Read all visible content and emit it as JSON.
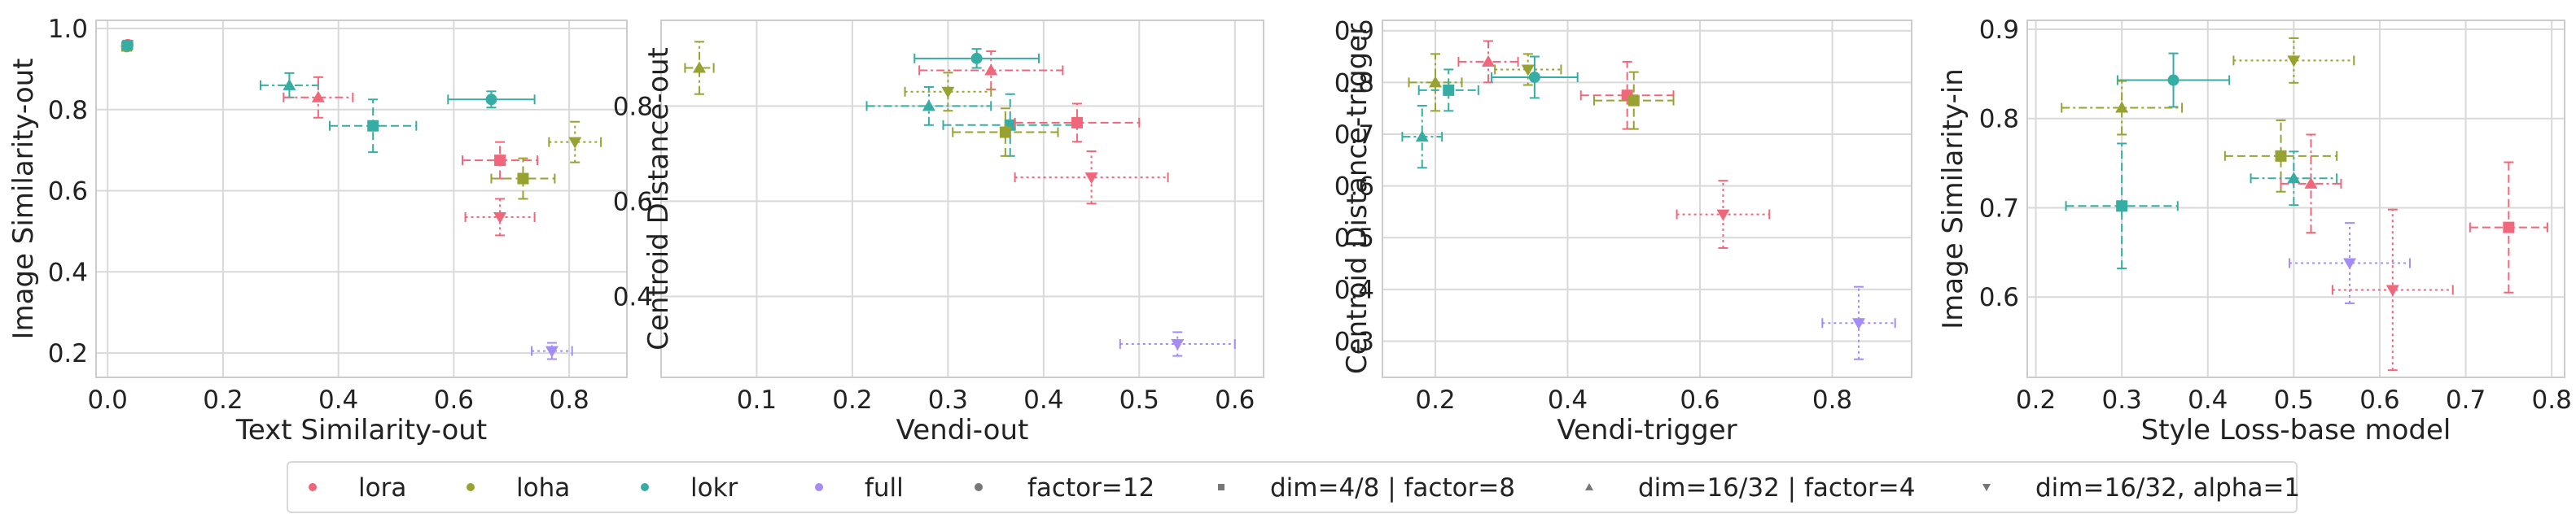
{
  "colors": {
    "lora": "#f0667a",
    "loha": "#97a231",
    "lokr": "#36ada4",
    "full": "#a48cf4",
    "grid": "#d9d9d9",
    "frame": "#cccccc"
  },
  "legend": {
    "adapters": [
      {
        "label": "lora",
        "color": "#f0667a"
      },
      {
        "label": "loha",
        "color": "#97a231"
      },
      {
        "label": "lokr",
        "color": "#36ada4"
      },
      {
        "label": "full",
        "color": "#a48cf4"
      }
    ],
    "configs": [
      {
        "label": "factor=12",
        "marker": "circle"
      },
      {
        "label": "dim=4/8 | factor=8",
        "marker": "square"
      },
      {
        "label": "dim=16/32 | factor=4",
        "marker": "triangle-up"
      },
      {
        "label": "dim=16/32, alpha=1",
        "marker": "triangle-down"
      }
    ]
  },
  "chart_data": [
    {
      "type": "scatter",
      "xlabel": "Text Similarity-out",
      "ylabel": "Image Similarity-out",
      "xlim": [
        -0.02,
        0.9
      ],
      "ylim": [
        0.14,
        1.02
      ],
      "xticks": [
        "0.0",
        "0.2",
        "0.4",
        "0.6",
        "0.8"
      ],
      "yticks": [
        "0.2",
        "0.4",
        "0.6",
        "0.8",
        "1.0"
      ],
      "xtick_values": [
        0,
        0.2,
        0.4,
        0.6,
        0.8
      ],
      "ytick_values": [
        0.2,
        0.4,
        0.6,
        0.8,
        1.0
      ],
      "points": [
        {
          "adapter": "lora",
          "marker": "circle",
          "x": 0.035,
          "y": 0.96,
          "xerr": 0.008,
          "yerr": 0.01
        },
        {
          "adapter": "loha",
          "marker": "circle",
          "x": 0.033,
          "y": 0.955,
          "xerr": 0.008,
          "yerr": 0.01
        },
        {
          "adapter": "lokr",
          "marker": "circle",
          "x": 0.034,
          "y": 0.958,
          "xerr": 0.008,
          "yerr": 0.01
        },
        {
          "adapter": "lokr",
          "marker": "triangle-up",
          "x": 0.315,
          "y": 0.86,
          "xerr": 0.05,
          "yerr": 0.03
        },
        {
          "adapter": "lora",
          "marker": "triangle-up",
          "x": 0.365,
          "y": 0.83,
          "xerr": 0.06,
          "yerr": 0.05
        },
        {
          "adapter": "lokr",
          "marker": "square",
          "x": 0.46,
          "y": 0.76,
          "xerr": 0.075,
          "yerr": 0.065
        },
        {
          "adapter": "lokr",
          "marker": "circle",
          "x": 0.665,
          "y": 0.825,
          "xerr": 0.075,
          "yerr": 0.02
        },
        {
          "adapter": "lora",
          "marker": "square",
          "x": 0.68,
          "y": 0.675,
          "xerr": 0.065,
          "yerr": 0.045
        },
        {
          "adapter": "loha",
          "marker": "square",
          "x": 0.72,
          "y": 0.63,
          "xerr": 0.055,
          "yerr": 0.05
        },
        {
          "adapter": "loha",
          "marker": "triangle-down",
          "x": 0.81,
          "y": 0.72,
          "xerr": 0.045,
          "yerr": 0.05
        },
        {
          "adapter": "lora",
          "marker": "triangle-down",
          "x": 0.68,
          "y": 0.535,
          "xerr": 0.06,
          "yerr": 0.045
        },
        {
          "adapter": "full",
          "marker": "triangle-down",
          "x": 0.77,
          "y": 0.205,
          "xerr": 0.035,
          "yerr": 0.02
        }
      ]
    },
    {
      "type": "scatter",
      "xlabel": "Vendi-out",
      "ylabel": "Centroid Distance-out",
      "xlim": [
        0.0,
        0.63
      ],
      "ylim": [
        0.23,
        0.98
      ],
      "xticks": [
        "0.1",
        "0.2",
        "0.3",
        "0.4",
        "0.5",
        "0.6"
      ],
      "yticks": [
        "0.4",
        "0.6",
        "0.8"
      ],
      "xtick_values": [
        0.1,
        0.2,
        0.3,
        0.4,
        0.5,
        0.6
      ],
      "ytick_values": [
        0.4,
        0.6,
        0.8
      ],
      "points": [
        {
          "adapter": "loha",
          "marker": "triangle-up",
          "x": 0.04,
          "y": 0.88,
          "xerr": 0.015,
          "yerr": 0.055
        },
        {
          "adapter": "lokr",
          "marker": "circle",
          "x": 0.33,
          "y": 0.9,
          "xerr": 0.065,
          "yerr": 0.02
        },
        {
          "adapter": "lora",
          "marker": "triangle-up",
          "x": 0.345,
          "y": 0.875,
          "xerr": 0.075,
          "yerr": 0.04
        },
        {
          "adapter": "loha",
          "marker": "triangle-down",
          "x": 0.3,
          "y": 0.83,
          "xerr": 0.045,
          "yerr": 0.04
        },
        {
          "adapter": "lokr",
          "marker": "triangle-up",
          "x": 0.28,
          "y": 0.8,
          "xerr": 0.065,
          "yerr": 0.04
        },
        {
          "adapter": "lokr",
          "marker": "square",
          "x": 0.365,
          "y": 0.76,
          "xerr": 0.07,
          "yerr": 0.065
        },
        {
          "adapter": "loha",
          "marker": "square",
          "x": 0.36,
          "y": 0.745,
          "xerr": 0.055,
          "yerr": 0.05
        },
        {
          "adapter": "lora",
          "marker": "square",
          "x": 0.435,
          "y": 0.765,
          "xerr": 0.065,
          "yerr": 0.04
        },
        {
          "adapter": "lora",
          "marker": "triangle-down",
          "x": 0.45,
          "y": 0.65,
          "xerr": 0.08,
          "yerr": 0.055
        },
        {
          "adapter": "full",
          "marker": "triangle-down",
          "x": 0.54,
          "y": 0.3,
          "xerr": 0.06,
          "yerr": 0.025
        }
      ]
    },
    {
      "type": "scatter",
      "xlabel": "Vendi-trigger",
      "ylabel": "Centroid Distance-trigger",
      "xlim": [
        0.12,
        0.92
      ],
      "ylim": [
        0.23,
        0.92
      ],
      "xticks": [
        "0.2",
        "0.4",
        "0.6",
        "0.8"
      ],
      "yticks": [
        "0.3",
        "0.4",
        "0.5",
        "0.6",
        "0.7",
        "0.8",
        "0.9"
      ],
      "xtick_values": [
        0.2,
        0.4,
        0.6,
        0.8
      ],
      "ytick_values": [
        0.3,
        0.4,
        0.5,
        0.6,
        0.7,
        0.8,
        0.9
      ],
      "points": [
        {
          "adapter": "lora",
          "marker": "triangle-up",
          "x": 0.28,
          "y": 0.84,
          "xerr": 0.045,
          "yerr": 0.04
        },
        {
          "adapter": "loha",
          "marker": "triangle-down",
          "x": 0.34,
          "y": 0.825,
          "xerr": 0.05,
          "yerr": 0.03
        },
        {
          "adapter": "loha",
          "marker": "triangle-up",
          "x": 0.2,
          "y": 0.8,
          "xerr": 0.04,
          "yerr": 0.055
        },
        {
          "adapter": "lokr",
          "marker": "circle",
          "x": 0.35,
          "y": 0.81,
          "xerr": 0.065,
          "yerr": 0.04
        },
        {
          "adapter": "lokr",
          "marker": "square",
          "x": 0.22,
          "y": 0.785,
          "xerr": 0.045,
          "yerr": 0.04
        },
        {
          "adapter": "lokr",
          "marker": "triangle-up",
          "x": 0.18,
          "y": 0.695,
          "xerr": 0.03,
          "yerr": 0.06
        },
        {
          "adapter": "lora",
          "marker": "square",
          "x": 0.49,
          "y": 0.775,
          "xerr": 0.07,
          "yerr": 0.065
        },
        {
          "adapter": "loha",
          "marker": "square",
          "x": 0.5,
          "y": 0.765,
          "xerr": 0.06,
          "yerr": 0.055
        },
        {
          "adapter": "lora",
          "marker": "triangle-down",
          "x": 0.635,
          "y": 0.545,
          "xerr": 0.07,
          "yerr": 0.065
        },
        {
          "adapter": "full",
          "marker": "triangle-down",
          "x": 0.84,
          "y": 0.335,
          "xerr": 0.055,
          "yerr": 0.07
        }
      ]
    },
    {
      "type": "scatter",
      "xlabel": "Style Loss-base model",
      "ylabel": "Image Similarity-in",
      "xlim": [
        0.19,
        0.815
      ],
      "ylim": [
        0.51,
        0.91
      ],
      "xticks": [
        "0.2",
        "0.3",
        "0.4",
        "0.5",
        "0.6",
        "0.7",
        "0.8"
      ],
      "yticks": [
        "0.6",
        "0.7",
        "0.8",
        "0.9"
      ],
      "xtick_values": [
        0.2,
        0.3,
        0.4,
        0.5,
        0.6,
        0.7,
        0.8
      ],
      "ytick_values": [
        0.6,
        0.7,
        0.8,
        0.9
      ],
      "points": [
        {
          "adapter": "loha",
          "marker": "triangle-down",
          "x": 0.5,
          "y": 0.865,
          "xerr": 0.07,
          "yerr": 0.025
        },
        {
          "adapter": "lokr",
          "marker": "circle",
          "x": 0.36,
          "y": 0.843,
          "xerr": 0.065,
          "yerr": 0.03
        },
        {
          "adapter": "loha",
          "marker": "triangle-up",
          "x": 0.3,
          "y": 0.812,
          "xerr": 0.07,
          "yerr": 0.03
        },
        {
          "adapter": "loha",
          "marker": "square",
          "x": 0.485,
          "y": 0.758,
          "xerr": 0.065,
          "yerr": 0.04
        },
        {
          "adapter": "lokr",
          "marker": "triangle-up",
          "x": 0.5,
          "y": 0.733,
          "xerr": 0.05,
          "yerr": 0.03
        },
        {
          "adapter": "lora",
          "marker": "triangle-up",
          "x": 0.52,
          "y": 0.727,
          "xerr": 0.035,
          "yerr": 0.055
        },
        {
          "adapter": "lokr",
          "marker": "square",
          "x": 0.3,
          "y": 0.702,
          "xerr": 0.065,
          "yerr": 0.07
        },
        {
          "adapter": "lora",
          "marker": "square",
          "x": 0.75,
          "y": 0.678,
          "xerr": 0.045,
          "yerr": 0.073
        },
        {
          "adapter": "full",
          "marker": "triangle-down",
          "x": 0.565,
          "y": 0.638,
          "xerr": 0.07,
          "yerr": 0.045
        },
        {
          "adapter": "lora",
          "marker": "triangle-down",
          "x": 0.615,
          "y": 0.608,
          "xerr": 0.07,
          "yerr": 0.09
        }
      ]
    }
  ]
}
